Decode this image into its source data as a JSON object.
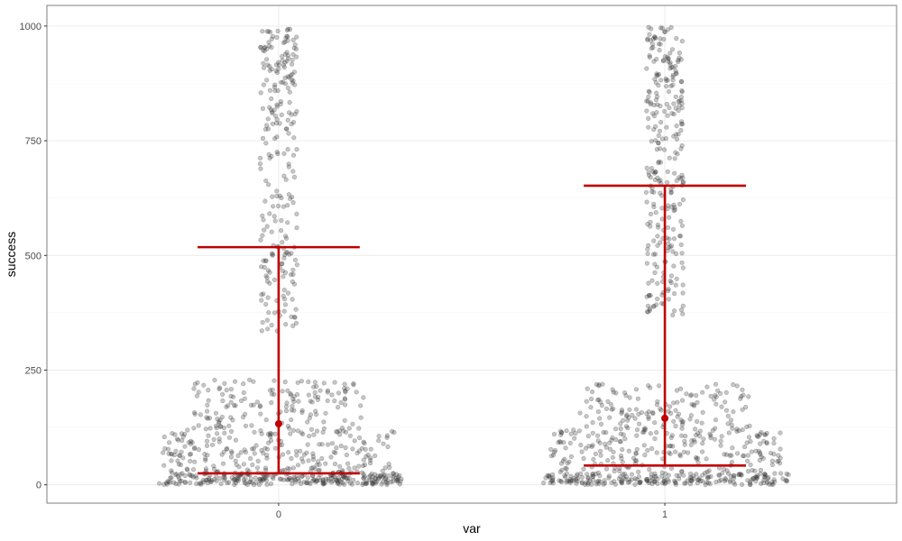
{
  "chart_data": {
    "type": "scatter",
    "xlabel": "var",
    "ylabel": "success",
    "categories": [
      "0",
      "1"
    ],
    "ylim": [
      -40,
      1045
    ],
    "y_ticks": [
      0,
      250,
      500,
      750,
      1000
    ],
    "y_tick_labels": [
      "0",
      "250",
      "500",
      "750",
      "1000"
    ],
    "grid": true,
    "points_color": "#333333",
    "summary_color": "#c00000",
    "jitter_width_fraction": 0.2,
    "groups": [
      {
        "category": "0",
        "mean": 133,
        "error_bar_low": 25,
        "error_bar_high": 518,
        "distribution": [
          {
            "low": 0,
            "high": 25,
            "count": 260
          },
          {
            "low": 25,
            "high": 120,
            "count": 230
          },
          {
            "low": 120,
            "high": 230,
            "count": 150
          },
          {
            "low": 330,
            "high": 530,
            "count": 70
          },
          {
            "low": 530,
            "high": 800,
            "count": 70
          },
          {
            "low": 800,
            "high": 995,
            "count": 100
          }
        ]
      },
      {
        "category": "1",
        "mean": 145,
        "error_bar_low": 42,
        "error_bar_high": 652,
        "distribution": [
          {
            "low": 0,
            "high": 25,
            "count": 220
          },
          {
            "low": 25,
            "high": 120,
            "count": 220
          },
          {
            "low": 120,
            "high": 220,
            "count": 140
          },
          {
            "low": 370,
            "high": 570,
            "count": 80
          },
          {
            "low": 570,
            "high": 800,
            "count": 90
          },
          {
            "low": 800,
            "high": 1000,
            "count": 110
          }
        ]
      }
    ]
  }
}
